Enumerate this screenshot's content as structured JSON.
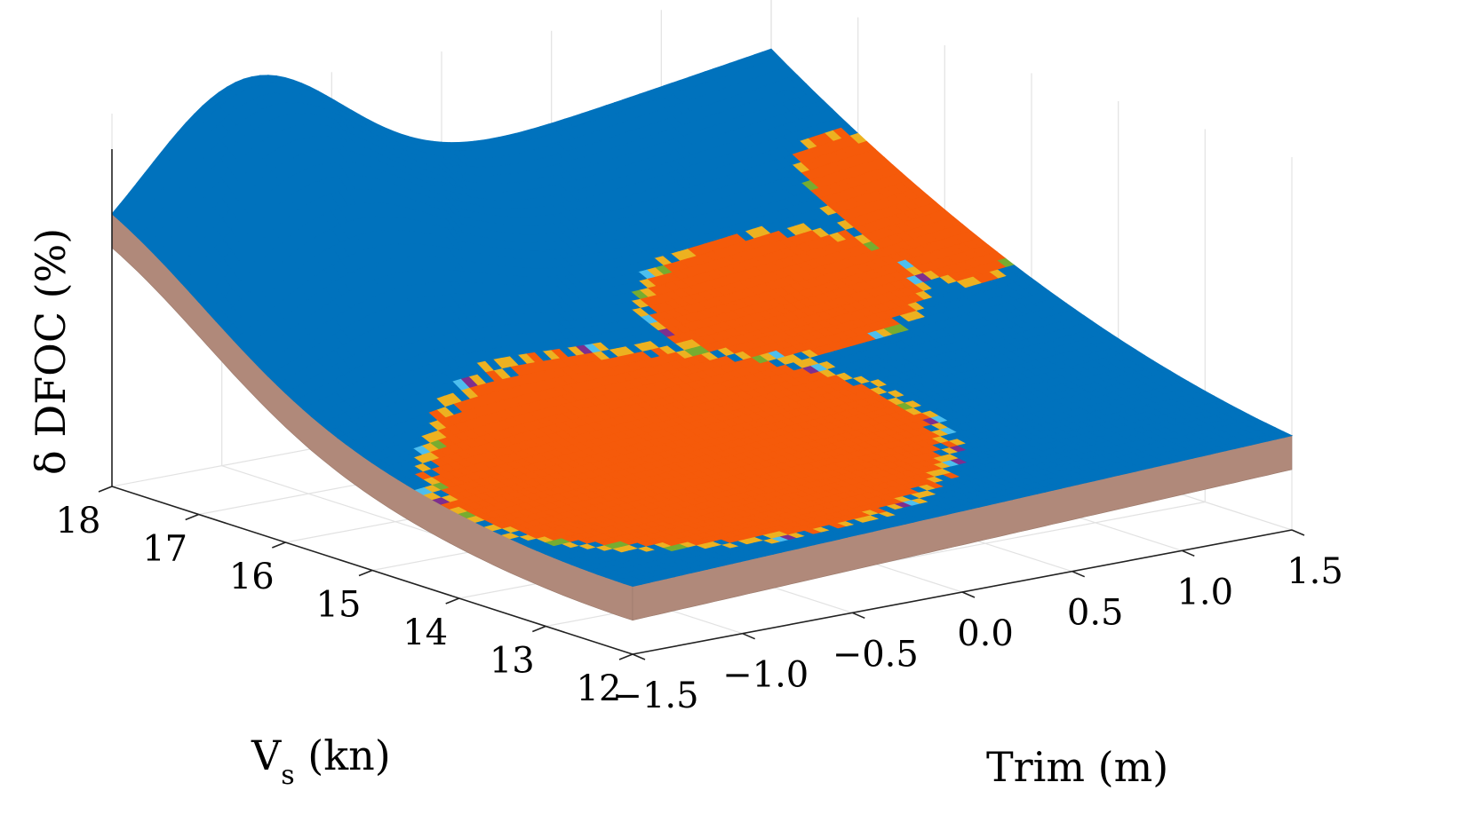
{
  "chart_data": {
    "type": "surface",
    "title": "",
    "xlabel": "Trim (m)",
    "ylabel": "V_s (kn)",
    "zlabel": "δ DFOC (%)",
    "x_ticks": [
      -1.5,
      -1.0,
      -0.5,
      0.0,
      0.5,
      1.0,
      1.5
    ],
    "x_tick_labels": [
      "−1.5",
      "−1.0",
      "−0.5",
      "0.0",
      "0.5",
      "1.0",
      "1.5"
    ],
    "y_ticks": [
      12,
      13,
      14,
      15,
      16,
      17,
      18
    ],
    "y_tick_labels": [
      "12",
      "13",
      "14",
      "15",
      "16",
      "17",
      "18"
    ],
    "xlim": [
      -1.5,
      1.5
    ],
    "ylim": [
      12,
      18
    ],
    "grid": true,
    "z_tick_labels_shown": false,
    "colors": {
      "blue": "#0072BD",
      "orange": "#F55A0A",
      "yellow": "#EDB120",
      "purple": "#7E2F8E",
      "green": "#77AC30",
      "cyan": "#4DBEEE",
      "side": "#b0897a"
    },
    "surface_shape": "z rises strongly toward high V_s (peak near V_s=18, Trim≈-0.9) and toward positive trim at high speed; lowest near V_s=12, Trim=-1.5",
    "color_regions": [
      {
        "color": "orange",
        "region": "low V_s (about 12.5-15.5 kn), trim from about -1.5 to 0.3 m"
      },
      {
        "color": "orange",
        "region": "ellipse centered near V_s ≈ 15.6 kn, Trim ≈ 0.6 m"
      },
      {
        "color": "orange",
        "region": "band along Trim ≈ 1.2-1.5 m for V_s ≈ 15-17 kn"
      },
      {
        "color": "blue",
        "region": "remainder of the surface"
      }
    ]
  },
  "axes": {
    "xlabel": "Trim (m)",
    "ylabel_main": "V",
    "ylabel_sub": "s",
    "ylabel_unit": " (kn)",
    "zlabel": "δ DFOC (%)"
  }
}
